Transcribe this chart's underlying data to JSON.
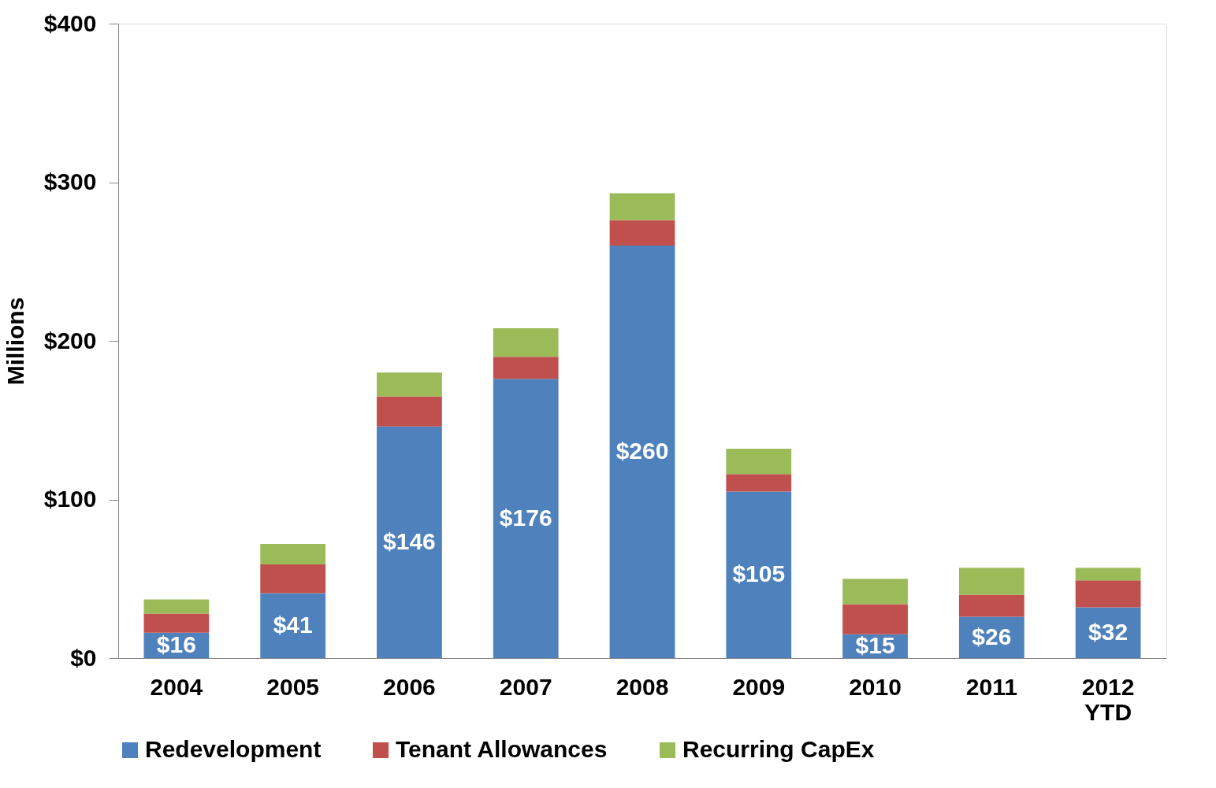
{
  "chart_data": {
    "type": "bar",
    "stacked": true,
    "ylabel": "Millions",
    "categories": [
      "2004",
      "2005",
      "2006",
      "2007",
      "2008",
      "2009",
      "2010",
      "2011",
      "2012\nYTD"
    ],
    "series": [
      {
        "name": "Redevelopment",
        "color": "#4f81bd",
        "values": [
          16,
          41,
          146,
          176,
          260,
          105,
          15,
          26,
          32
        ],
        "value_labels": [
          "$16",
          "$41",
          "$146",
          "$176",
          "$260",
          "$105",
          "$15",
          "$26",
          "$32"
        ]
      },
      {
        "name": "Tenant Allowances",
        "color": "#c0504d",
        "values": [
          12,
          18,
          19,
          14,
          16,
          11,
          19,
          14,
          17
        ]
      },
      {
        "name": "Recurring CapEx",
        "color": "#9bbb59",
        "values": [
          9,
          13,
          15,
          18,
          17,
          16,
          16,
          17,
          8
        ]
      }
    ],
    "ylim": [
      0,
      400
    ],
    "yticks": [
      {
        "value": 0,
        "label": "$0"
      },
      {
        "value": 100,
        "label": "$100"
      },
      {
        "value": 200,
        "label": "$200"
      },
      {
        "value": 300,
        "label": "$300"
      },
      {
        "value": 400,
        "label": "$400"
      }
    ],
    "grid": false,
    "legend": "bottom"
  }
}
